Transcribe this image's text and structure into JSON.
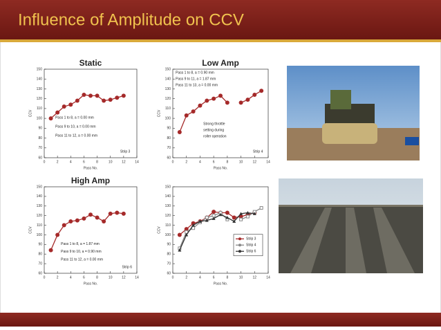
{
  "slide": {
    "title": "Influence of Amplitude on CCV"
  },
  "chart_data": [
    {
      "type": "line",
      "title": "Static",
      "xlabel": "Pass No.",
      "ylabel": "CCV",
      "x": [
        1,
        2,
        3,
        4,
        5,
        6,
        7,
        8,
        9,
        10,
        11,
        12
      ],
      "xlim": [
        0,
        14
      ],
      "xticks": [
        0,
        2,
        4,
        6,
        8,
        10,
        12,
        14
      ],
      "ylim": [
        60,
        150
      ],
      "yticks": [
        60,
        70,
        80,
        90,
        100,
        110,
        120,
        130,
        140,
        150
      ],
      "series": [
        {
          "name": "Strip 3",
          "color": "#a52a2a",
          "values": [
            100,
            106,
            112,
            114,
            118,
            124,
            123,
            123,
            118,
            119,
            121,
            123
          ]
        }
      ],
      "annotations": [
        "Pass 1 to 8, a = 0.00 mm",
        "Pass 9 to 10, a = 0.00 mm",
        "Pass 11 to 12, a = 0.00 mm",
        "Strip 3"
      ]
    },
    {
      "type": "line",
      "title": "Low Amp",
      "xlabel": "Pass No.",
      "ylabel": "CCV",
      "x": [
        1,
        2,
        3,
        4,
        5,
        6,
        7,
        8,
        9,
        10,
        11,
        12,
        13
      ],
      "xlim": [
        0,
        14
      ],
      "xticks": [
        0,
        2,
        4,
        6,
        8,
        10,
        12,
        14
      ],
      "ylim": [
        60,
        150
      ],
      "yticks": [
        60,
        70,
        80,
        90,
        100,
        110,
        120,
        130,
        140,
        150
      ],
      "series": [
        {
          "name": "Strip 4",
          "color": "#a52a2a",
          "values": [
            86,
            103,
            107,
            113,
            118,
            120,
            123,
            116,
            null,
            116,
            119,
            124,
            128
          ]
        }
      ],
      "annotations": [
        "Pass 1 to 8, a = 0.90 mm",
        "Pass 9 to 11, a = 1.87 mm",
        "Pass 11 to 13, a = 0.00 mm",
        "Strong throttle",
        "setting during",
        "roller operation",
        "Strip 4"
      ]
    },
    {
      "type": "line",
      "title": "High Amp",
      "xlabel": "Pass No.",
      "ylabel": "CCV",
      "x": [
        1,
        2,
        3,
        4,
        5,
        6,
        7,
        8,
        9,
        10,
        11,
        12
      ],
      "xlim": [
        0,
        14
      ],
      "xticks": [
        0,
        2,
        4,
        6,
        8,
        10,
        12,
        14
      ],
      "ylim": [
        60,
        150
      ],
      "yticks": [
        60,
        70,
        80,
        90,
        100,
        110,
        120,
        130,
        140,
        150
      ],
      "series": [
        {
          "name": "Strip 6",
          "color": "#a52a2a",
          "values": [
            84,
            100,
            110,
            114,
            115,
            117,
            121,
            118,
            114,
            122,
            123,
            122
          ]
        }
      ],
      "annotations": [
        "Pass 1 to 8, a = 1.87 mm",
        "Pass 9 to 10, a = 0.90 mm",
        "Pass 11 to 12, a = 0.00 mm",
        "Strip 6"
      ]
    },
    {
      "type": "line",
      "xlabel": "Pass No.",
      "ylabel": "CCV",
      "x": [
        1,
        2,
        3,
        4,
        5,
        6,
        7,
        8,
        9,
        10,
        11,
        12,
        13
      ],
      "xlim": [
        0,
        14
      ],
      "xticks": [
        0,
        2,
        4,
        6,
        8,
        10,
        12,
        14
      ],
      "ylim": [
        60,
        150
      ],
      "yticks": [
        60,
        70,
        80,
        90,
        100,
        110,
        120,
        130,
        140,
        150
      ],
      "legend": "right",
      "series": [
        {
          "name": "Strip 3",
          "color": "#a52a2a",
          "values": [
            100,
            106,
            112,
            114,
            118,
            124,
            123,
            123,
            118,
            119,
            121,
            123,
            null
          ]
        },
        {
          "name": "Strip 4",
          "color": "#888888",
          "values": [
            86,
            103,
            107,
            113,
            118,
            120,
            123,
            116,
            null,
            116,
            119,
            124,
            128
          ]
        },
        {
          "name": "Strip 6",
          "color": "#333333",
          "values": [
            84,
            100,
            110,
            114,
            115,
            117,
            121,
            118,
            114,
            122,
            123,
            122,
            null
          ]
        }
      ]
    }
  ]
}
